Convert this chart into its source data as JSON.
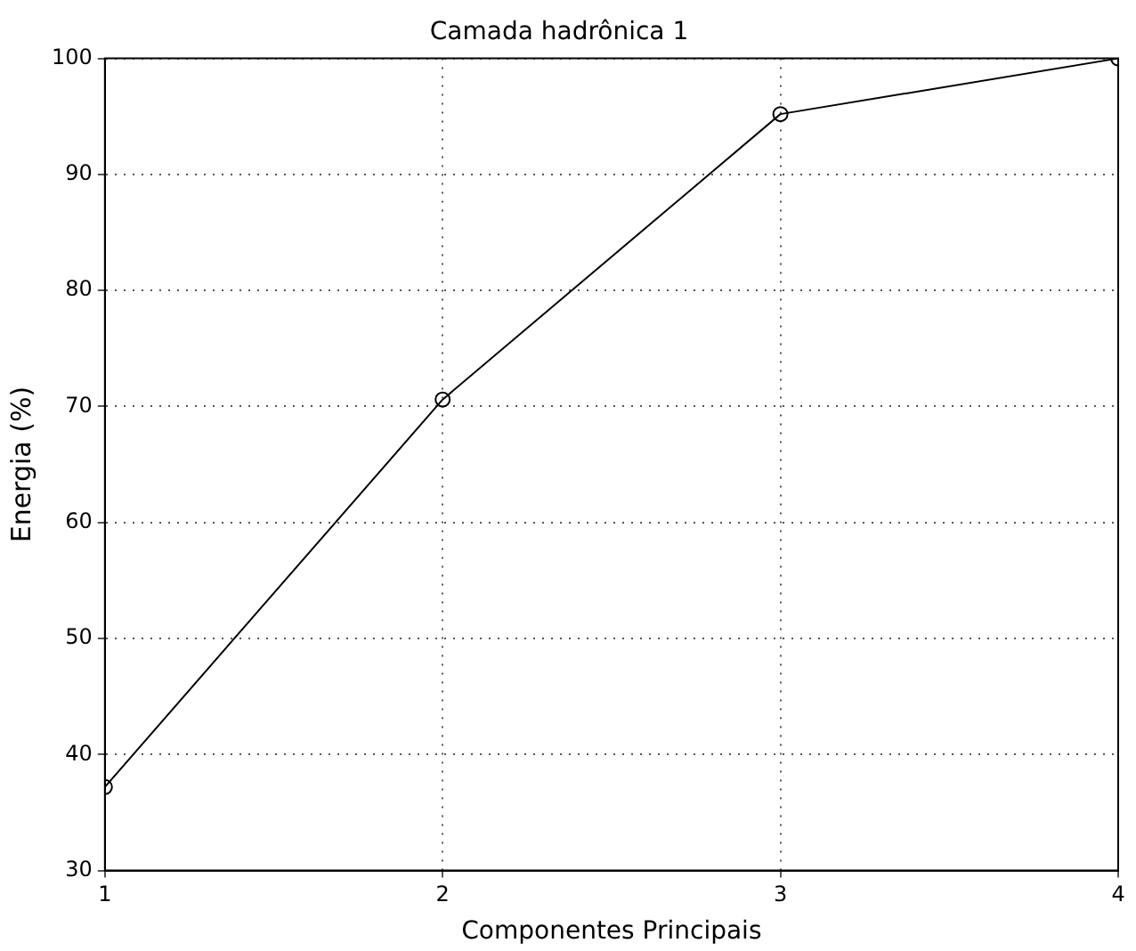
{
  "chart_data": {
    "type": "line",
    "title": "Camada hadrônica 1",
    "xlabel": "Componentes Principais",
    "ylabel": "Energia (%)",
    "x": [
      1,
      2,
      3,
      4
    ],
    "series": [
      {
        "color": "#000000",
        "values": [
          37.2,
          70.6,
          95.2,
          100
        ]
      }
    ],
    "xlim": [
      1,
      4
    ],
    "xticks": [
      1,
      2,
      3,
      4
    ],
    "ylim": [
      30,
      100
    ],
    "yticks": [
      30,
      40,
      50,
      60,
      70,
      80,
      90,
      100
    ],
    "grid": true,
    "marker": "circle",
    "line_style": "solid",
    "legend": false
  }
}
